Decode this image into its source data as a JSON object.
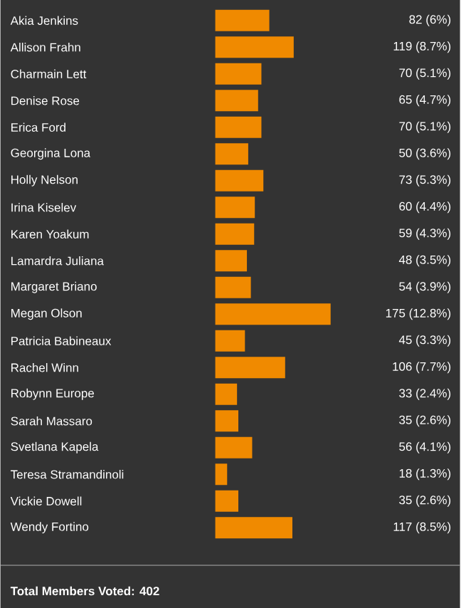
{
  "chart_data": {
    "type": "bar",
    "orientation": "horizontal",
    "color": "#f08a00",
    "categories": [
      "Akia Jenkins",
      "Allison Frahn",
      "Charmain Lett",
      "Denise Rose",
      "Erica Ford",
      "Georgina Lona",
      "Holly Nelson",
      "Irina Kiselev",
      "Karen Yoakum",
      "Lamardra Juliana",
      "Margaret Briano",
      "Megan Olson",
      "Patricia Babineaux",
      "Rachel Winn",
      "Robynn Europe",
      "Sarah Massaro",
      "Svetlana Kapela",
      "Teresa Stramandinoli",
      "Vickie Dowell",
      "Wendy Fortino"
    ],
    "values": [
      82,
      119,
      70,
      65,
      70,
      50,
      73,
      60,
      59,
      48,
      54,
      175,
      45,
      106,
      33,
      35,
      56,
      18,
      35,
      117
    ],
    "value_labels": [
      "82 (6%)",
      "119 (8.7%)",
      "70 (5.1%)",
      "65 (4.7%)",
      "70 (5.1%)",
      "50 (3.6%)",
      "73 (5.3%)",
      "60 (4.4%)",
      "59 (4.3%)",
      "48 (3.5%)",
      "54 (3.9%)",
      "175 (12.8%)",
      "45 (3.3%)",
      "106 (7.7%)",
      "33 (2.4%)",
      "35 (2.6%)",
      "56 (4.1%)",
      "18 (1.3%)",
      "35 (2.6%)",
      "117 (8.5%)"
    ],
    "annotations": [
      "Total Members Voted: 402"
    ]
  }
}
